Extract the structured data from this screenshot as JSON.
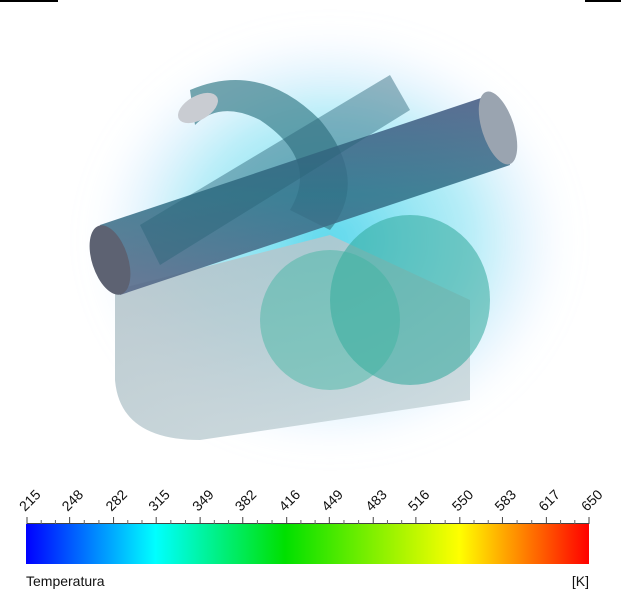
{
  "chart_data": {
    "type": "colorbar",
    "title": "Temperatura",
    "unit": "[K]",
    "xlim": [
      215,
      650
    ],
    "xticks": [
      215,
      248,
      282,
      315,
      349,
      382,
      416,
      449,
      483,
      516,
      550,
      583,
      617,
      650
    ]
  }
}
